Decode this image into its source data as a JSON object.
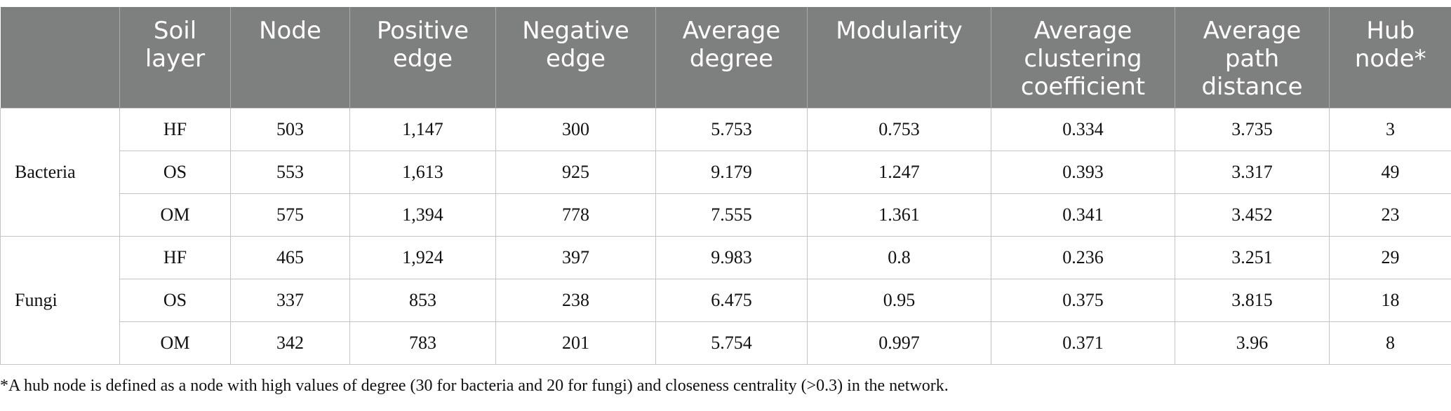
{
  "table": {
    "headers": [
      "",
      "Soil layer",
      "Node",
      "Positive edge",
      "Negative edge",
      "Average degree",
      "Modularity",
      "Average clustering coefficient",
      "Average path distance",
      "Hub node*"
    ],
    "groups": [
      {
        "name": "Bacteria",
        "rows": [
          [
            "HF",
            "503",
            "1,147",
            "300",
            "5.753",
            "0.753",
            "0.334",
            "3.735",
            "3"
          ],
          [
            "OS",
            "553",
            "1,613",
            "925",
            "9.179",
            "1.247",
            "0.393",
            "3.317",
            "49"
          ],
          [
            "OM",
            "575",
            "1,394",
            "778",
            "7.555",
            "1.361",
            "0.341",
            "3.452",
            "23"
          ]
        ]
      },
      {
        "name": "Fungi",
        "rows": [
          [
            "HF",
            "465",
            "1,924",
            "397",
            "9.983",
            "0.8",
            "0.236",
            "3.251",
            "29"
          ],
          [
            "OS",
            "337",
            "853",
            "238",
            "6.475",
            "0.95",
            "0.375",
            "3.815",
            "18"
          ],
          [
            "OM",
            "342",
            "783",
            "201",
            "5.754",
            "0.997",
            "0.371",
            "3.96",
            "8"
          ]
        ]
      }
    ]
  },
  "footnote": "*A hub node is defined as a node with high values of degree (30 for bacteria and 20 for fungi) and closeness centrality (>0.3) in the network.",
  "colors": {
    "header_bg": "#7e807f",
    "header_text": "#ffffff",
    "grid": "#c4c4c4"
  }
}
